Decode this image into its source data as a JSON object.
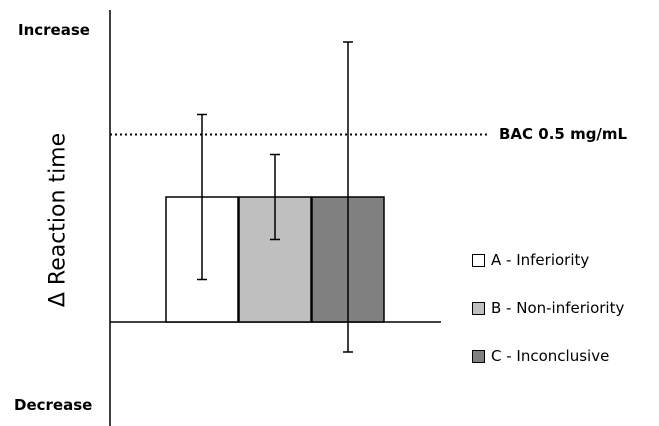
{
  "chart_data": {
    "type": "bar",
    "ylabel": "Δ Reaction time",
    "ytick_top": "Increase",
    "ytick_bottom": "Decrease",
    "reference_line": {
      "label": "BAC 0.5 mg/mL",
      "value": 0.75,
      "style": "dotted"
    },
    "ylim": [
      -0.38,
      1.14
    ],
    "grid": false,
    "legend_position": "right",
    "series": [
      {
        "name": "A - Inferiority",
        "value": 0.5,
        "error_low": 0.17,
        "error_high": 0.83,
        "color": "#ffffff"
      },
      {
        "name": "B - Non-inferiority",
        "value": 0.5,
        "error_low": 0.33,
        "error_high": 0.67,
        "color": "#bfbfbf"
      },
      {
        "name": "C - Inconclusive",
        "value": 0.5,
        "error_low": -0.12,
        "error_high": 1.12,
        "color": "#808080"
      }
    ]
  }
}
